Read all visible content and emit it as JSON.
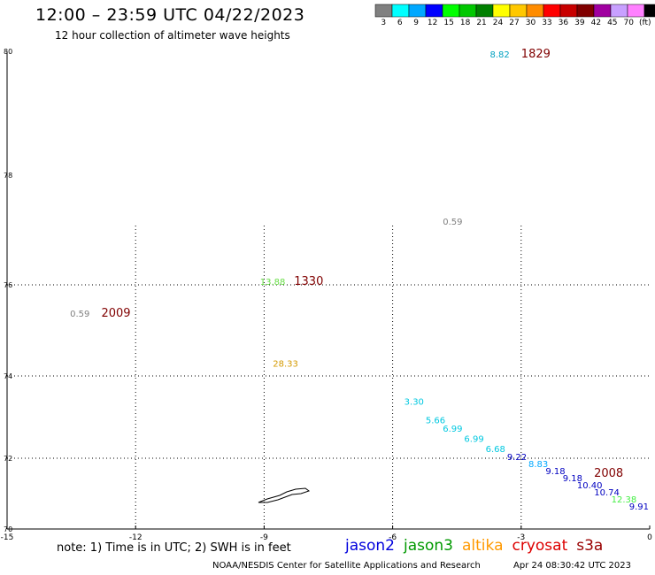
{
  "header": {
    "title": "12:00 – 23:59 UTC 04/22/2023",
    "subtitle": "12 hour collection of altimeter wave heights"
  },
  "color_scale": {
    "colors": [
      "#808080",
      "#00ffff",
      "#00a8ff",
      "#0000ff",
      "#00ff00",
      "#00c800",
      "#008000",
      "#ffff00",
      "#ffc800",
      "#ff8c00",
      "#ff0000",
      "#c80000",
      "#800000",
      "#a000a0",
      "#c8a0ff",
      "#ff80ff",
      "#000000"
    ],
    "labels": [
      "3",
      "6",
      "9",
      "12",
      "15",
      "18",
      "21",
      "24",
      "27",
      "30",
      "33",
      "36",
      "39",
      "42",
      "45",
      "70",
      "(ft)"
    ]
  },
  "map": {
    "lat_ticks": [
      "70",
      "72",
      "74",
      "76",
      "78",
      "80"
    ],
    "lon_ticks": [
      "-15",
      "-12",
      "-9",
      "-6",
      "-3",
      "0"
    ],
    "points": [
      {
        "lon": -3.5,
        "lat": 79.9,
        "value": "8.82",
        "color": "#00a0c0"
      },
      {
        "lon": -4.6,
        "lat": 77.1,
        "value": "0.59",
        "color": "#808080"
      },
      {
        "lon": -8.8,
        "lat": 76.0,
        "value": "13.88",
        "color": "#66dd44"
      },
      {
        "lon": -13.3,
        "lat": 75.3,
        "value": "0.59",
        "color": "#808080"
      },
      {
        "lon": -8.5,
        "lat": 74.2,
        "value": "28.33",
        "color": "#d49a00"
      },
      {
        "lon": -5.5,
        "lat": 73.3,
        "value": "3.30",
        "color": "#00c8e0"
      },
      {
        "lon": -5.0,
        "lat": 72.85,
        "value": "5.66",
        "color": "#00c8e0"
      },
      {
        "lon": -4.6,
        "lat": 72.65,
        "value": "6.99",
        "color": "#00c8e0"
      },
      {
        "lon": -4.1,
        "lat": 72.4,
        "value": "6.99",
        "color": "#00c8e0"
      },
      {
        "lon": -3.6,
        "lat": 72.15,
        "value": "6.68",
        "color": "#00c8e0"
      },
      {
        "lon": -3.1,
        "lat": 71.95,
        "value": "9.22",
        "color": "#0000c0"
      },
      {
        "lon": -2.6,
        "lat": 71.75,
        "value": "8.83",
        "color": "#00a8ff"
      },
      {
        "lon": -2.2,
        "lat": 71.55,
        "value": "9.18",
        "color": "#0000c0"
      },
      {
        "lon": -1.8,
        "lat": 71.35,
        "value": "9.18",
        "color": "#0000c0"
      },
      {
        "lon": -1.4,
        "lat": 71.15,
        "value": "10.40",
        "color": "#0000c0"
      },
      {
        "lon": -1.0,
        "lat": 70.95,
        "value": "10.74",
        "color": "#0000c0"
      },
      {
        "lon": -0.6,
        "lat": 70.75,
        "value": "12.38",
        "color": "#44ee44"
      },
      {
        "lon": -0.25,
        "lat": 70.55,
        "value": "9.91",
        "color": "#0000c0"
      }
    ],
    "passes": [
      {
        "lon": -3.0,
        "lat": 79.9,
        "label": "1829",
        "color": "#800000"
      },
      {
        "lon": -8.3,
        "lat": 76.0,
        "label": "1330",
        "color": "#800000"
      },
      {
        "lon": -12.8,
        "lat": 75.3,
        "label": "2009",
        "color": "#800000"
      },
      {
        "lon": -1.3,
        "lat": 71.48,
        "label": "2008",
        "color": "#800000"
      }
    ]
  },
  "footer": {
    "note": "note: 1) Time is in UTC; 2) SWH is in feet",
    "satellites": [
      {
        "name": "jason2",
        "color": "#0000dd"
      },
      {
        "name": "jason3",
        "color": "#009900"
      },
      {
        "name": "altika",
        "color": "#ff9900"
      },
      {
        "name": "cryosat",
        "color": "#dd0000"
      },
      {
        "name": "s3a",
        "color": "#990000"
      }
    ],
    "credit": "NOAA/NESDIS Center for Satellite Applications and Research",
    "timestamp": "Apr 24 08:30:42 UTC 2023"
  }
}
